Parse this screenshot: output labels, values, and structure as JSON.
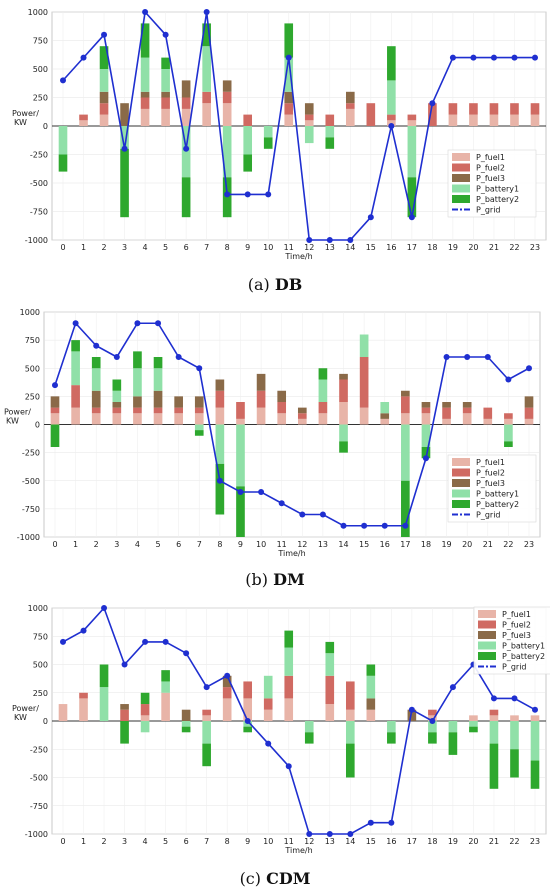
{
  "chart_data": [
    {
      "type": "bar",
      "caption_tag": "(a)",
      "caption_name": "DB",
      "title": "",
      "xlabel": "Time/h",
      "ylabel_1": "Power/",
      "ylabel_2": "KW",
      "ylim": [
        -1000,
        1000
      ],
      "yticks": [
        1000,
        750,
        500,
        250,
        0,
        -250,
        -500,
        -750,
        -1000
      ],
      "x": [
        0,
        1,
        2,
        3,
        4,
        5,
        6,
        7,
        8,
        9,
        10,
        11,
        12,
        13,
        14,
        15,
        16,
        17,
        18,
        19,
        20,
        21,
        22,
        23
      ],
      "legend_position": "right",
      "series": [
        {
          "name": "P_fuel1",
          "color": "#e8b4a8",
          "values": [
            0,
            50,
            100,
            0,
            150,
            150,
            150,
            200,
            200,
            0,
            0,
            100,
            50,
            0,
            150,
            0,
            50,
            50,
            0,
            100,
            100,
            100,
            100,
            100
          ]
        },
        {
          "name": "P_fuel2",
          "color": "#d06a62",
          "values": [
            0,
            50,
            100,
            0,
            100,
            100,
            100,
            100,
            100,
            100,
            0,
            100,
            50,
            100,
            50,
            200,
            50,
            50,
            200,
            100,
            100,
            100,
            100,
            100
          ]
        },
        {
          "name": "P_fuel3",
          "color": "#8a6a48",
          "values": [
            0,
            0,
            100,
            200,
            50,
            50,
            150,
            0,
            100,
            0,
            0,
            100,
            100,
            0,
            100,
            0,
            0,
            0,
            0,
            0,
            0,
            0,
            0,
            0
          ]
        },
        {
          "name": "P_battery1",
          "color": "#90e0a8",
          "values": [
            -250,
            0,
            200,
            -200,
            300,
            200,
            -450,
            400,
            -450,
            -250,
            -100,
            300,
            -150,
            -100,
            0,
            0,
            300,
            -450,
            0,
            0,
            0,
            0,
            0,
            0
          ]
        },
        {
          "name": "P_battery2",
          "color": "#2ea82e",
          "values": [
            -150,
            0,
            200,
            -600,
            300,
            100,
            -350,
            200,
            -350,
            -150,
            -100,
            300,
            0,
            -100,
            0,
            0,
            300,
            -350,
            0,
            0,
            0,
            0,
            0,
            0
          ]
        },
        {
          "name": "P_grid",
          "color": "#1f2fd0",
          "type": "line",
          "values": [
            400,
            600,
            800,
            -200,
            1000,
            800,
            -200,
            1000,
            -600,
            -600,
            -600,
            600,
            -1000,
            -1000,
            -1000,
            -800,
            0,
            -800,
            200,
            600,
            600,
            600,
            600,
            600
          ]
        }
      ]
    },
    {
      "type": "bar",
      "caption_tag": "(b)",
      "caption_name": "DM",
      "title": "",
      "xlabel": "Time/h",
      "ylabel_1": "Power/",
      "ylabel_2": "KW",
      "ylim": [
        -1000,
        1000
      ],
      "yticks": [
        1000,
        750,
        500,
        250,
        0,
        -250,
        -500,
        -750,
        -1000
      ],
      "x": [
        0,
        1,
        2,
        3,
        4,
        5,
        6,
        7,
        8,
        9,
        10,
        11,
        12,
        13,
        14,
        15,
        16,
        17,
        18,
        19,
        20,
        21,
        22,
        23
      ],
      "legend_position": "right",
      "series": [
        {
          "name": "P_fuel1",
          "color": "#e8b4a8",
          "values": [
            100,
            150,
            100,
            100,
            100,
            100,
            100,
            100,
            150,
            50,
            150,
            100,
            50,
            100,
            200,
            150,
            50,
            100,
            100,
            50,
            100,
            50,
            50,
            50
          ]
        },
        {
          "name": "P_fuel2",
          "color": "#d06a62",
          "values": [
            50,
            200,
            50,
            50,
            50,
            50,
            50,
            50,
            150,
            150,
            150,
            100,
            50,
            100,
            200,
            450,
            0,
            150,
            50,
            100,
            50,
            100,
            50,
            100
          ]
        },
        {
          "name": "P_fuel3",
          "color": "#8a6a48",
          "values": [
            100,
            0,
            150,
            50,
            100,
            150,
            100,
            100,
            100,
            0,
            150,
            100,
            50,
            0,
            50,
            0,
            50,
            50,
            50,
            50,
            50,
            0,
            0,
            100
          ]
        },
        {
          "name": "P_battery1",
          "color": "#90e0a8",
          "values": [
            0,
            300,
            200,
            100,
            250,
            200,
            0,
            -50,
            -350,
            -550,
            0,
            0,
            0,
            200,
            -150,
            200,
            100,
            -500,
            -200,
            0,
            0,
            0,
            -150,
            0
          ]
        },
        {
          "name": "P_battery2",
          "color": "#2ea82e",
          "values": [
            -200,
            100,
            100,
            100,
            150,
            100,
            0,
            -50,
            -450,
            -450,
            0,
            0,
            0,
            100,
            -100,
            0,
            0,
            -500,
            -100,
            0,
            0,
            0,
            -50,
            0
          ]
        },
        {
          "name": "P_grid",
          "color": "#1f2fd0",
          "type": "line",
          "values": [
            350,
            900,
            700,
            600,
            900,
            900,
            600,
            500,
            -500,
            -600,
            -600,
            -700,
            -800,
            -800,
            -900,
            -900,
            -900,
            -900,
            -300,
            600,
            600,
            600,
            400,
            500
          ]
        }
      ]
    },
    {
      "type": "bar",
      "caption_tag": "(c)",
      "caption_name": "CDM",
      "title": "",
      "xlabel": "Time/h",
      "ylabel_1": "Power/",
      "ylabel_2": "KW",
      "ylim": [
        -1000,
        1000
      ],
      "yticks": [
        1000,
        750,
        500,
        250,
        0,
        -250,
        -500,
        -750,
        -1000
      ],
      "x": [
        0,
        1,
        2,
        3,
        4,
        5,
        6,
        7,
        8,
        9,
        10,
        11,
        12,
        13,
        14,
        15,
        16,
        17,
        18,
        19,
        20,
        21,
        22,
        23
      ],
      "legend_position": "top-right",
      "series": [
        {
          "name": "P_fuel1",
          "color": "#e8b4a8",
          "values": [
            150,
            200,
            0,
            0,
            50,
            250,
            0,
            50,
            200,
            200,
            100,
            200,
            0,
            150,
            100,
            100,
            0,
            0,
            50,
            0,
            50,
            50,
            50,
            50
          ]
        },
        {
          "name": "P_fuel2",
          "color": "#d06a62",
          "values": [
            0,
            50,
            0,
            100,
            100,
            0,
            0,
            50,
            100,
            150,
            100,
            200,
            0,
            250,
            250,
            0,
            0,
            0,
            50,
            0,
            0,
            50,
            0,
            0
          ]
        },
        {
          "name": "P_fuel3",
          "color": "#8a6a48",
          "values": [
            0,
            0,
            0,
            50,
            0,
            0,
            100,
            0,
            100,
            0,
            0,
            0,
            0,
            0,
            0,
            100,
            0,
            100,
            0,
            0,
            0,
            0,
            0,
            0
          ]
        },
        {
          "name": "P_battery1",
          "color": "#90e0a8",
          "values": [
            0,
            0,
            300,
            0,
            -100,
            100,
            -50,
            -200,
            0,
            -50,
            200,
            250,
            -100,
            200,
            -200,
            200,
            -100,
            0,
            -100,
            -100,
            -50,
            -200,
            -250,
            -350
          ]
        },
        {
          "name": "P_battery2",
          "color": "#2ea82e",
          "values": [
            0,
            0,
            200,
            -200,
            100,
            100,
            -50,
            -200,
            0,
            -50,
            0,
            150,
            -100,
            100,
            -300,
            100,
            -100,
            0,
            -100,
            -200,
            -50,
            -400,
            -250,
            -250
          ]
        },
        {
          "name": "P_grid",
          "color": "#1f2fd0",
          "type": "line",
          "values": [
            700,
            800,
            1000,
            500,
            700,
            700,
            600,
            300,
            400,
            0,
            -200,
            -400,
            -1000,
            -1000,
            -1000,
            -900,
            -900,
            100,
            0,
            300,
            500,
            200,
            200,
            100
          ]
        }
      ]
    }
  ]
}
